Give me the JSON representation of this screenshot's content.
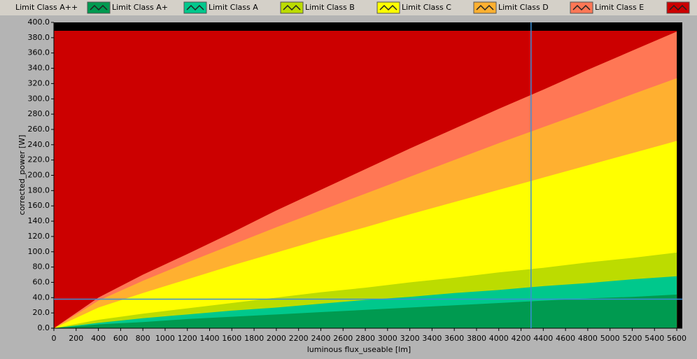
{
  "chart_data": {
    "type": "area",
    "xlabel": "luminous flux_useable [lm]",
    "ylabel": "corrected_power [W]",
    "x": [
      0,
      400,
      800,
      1200,
      1600,
      2000,
      2400,
      2800,
      3200,
      3600,
      4000,
      4400,
      4800,
      5200,
      5600
    ],
    "series": [
      {
        "name": "Limit Class A++",
        "color": "#009a50",
        "values": [
          0,
          5,
          8,
          12,
          15,
          18,
          21,
          24,
          27,
          30,
          33,
          36,
          39,
          41,
          44
        ]
      },
      {
        "name": "Limit Class A+",
        "color": "#00c88c",
        "values": [
          0,
          7,
          13,
          18,
          23,
          27,
          32,
          37,
          41,
          46,
          50,
          55,
          59,
          64,
          68
        ]
      },
      {
        "name": "Limit Class A",
        "color": "#bcdc00",
        "values": [
          0,
          11,
          19,
          26,
          33,
          40,
          47,
          53,
          60,
          66,
          73,
          79,
          86,
          92,
          99
        ]
      },
      {
        "name": "Limit Class B",
        "color": "#ffff00",
        "values": [
          0,
          27,
          46,
          64,
          82,
          99,
          116,
          132,
          149,
          165,
          181,
          197,
          213,
          229,
          245
        ]
      },
      {
        "name": "Limit Class C",
        "color": "#ffb030",
        "values": [
          0,
          36,
          62,
          86,
          109,
          132,
          154,
          176,
          198,
          220,
          242,
          263,
          284,
          306,
          327
        ]
      },
      {
        "name": "Limit Class D",
        "color": "#ff7755",
        "values": [
          0,
          40,
          70,
          97,
          125,
          154,
          181,
          208,
          235,
          261,
          287,
          312,
          338,
          363,
          388
        ]
      },
      {
        "name": "Limit Class E",
        "color": "#cc0000",
        "values": [
          389,
          389,
          389,
          389,
          389,
          389,
          389,
          389,
          389,
          389,
          389,
          389,
          389,
          389,
          389
        ]
      }
    ],
    "xlim": [
      0,
      5650
    ],
    "ylim": [
      0,
      400
    ],
    "xticks": [
      0,
      200,
      400,
      600,
      800,
      1000,
      1200,
      1400,
      1600,
      1800,
      2000,
      2200,
      2400,
      2600,
      2800,
      3000,
      3200,
      3400,
      3600,
      3800,
      4000,
      4200,
      4400,
      4600,
      4800,
      5000,
      5200,
      5400,
      5600
    ],
    "yticks": [
      {
        "value": 0,
        "label": "0.0"
      },
      {
        "value": 20,
        "label": "20.0"
      },
      {
        "value": 40,
        "label": "40.0"
      },
      {
        "value": 60,
        "label": "60.0"
      },
      {
        "value": 80,
        "label": "80.0"
      },
      {
        "value": 100,
        "label": "100.0"
      },
      {
        "value": 120,
        "label": "120.0"
      },
      {
        "value": 140,
        "label": "140.0"
      },
      {
        "value": 160,
        "label": "160.0"
      },
      {
        "value": 180,
        "label": "180.0"
      },
      {
        "value": 200,
        "label": "200.0"
      },
      {
        "value": 220,
        "label": "220.0"
      },
      {
        "value": 240,
        "label": "240.0"
      },
      {
        "value": 260,
        "label": "260.0"
      },
      {
        "value": 280,
        "label": "280.0"
      },
      {
        "value": 300,
        "label": "300.0"
      },
      {
        "value": 320,
        "label": "320.0"
      },
      {
        "value": 340,
        "label": "340.0"
      },
      {
        "value": 360,
        "label": "360.0"
      },
      {
        "value": 380,
        "label": "380.0"
      },
      {
        "value": 400,
        "label": "400.0"
      }
    ],
    "cursor": {
      "x": 4290,
      "y": 38,
      "color": "#3a8fd8"
    },
    "grid": false,
    "background": "#000000"
  }
}
